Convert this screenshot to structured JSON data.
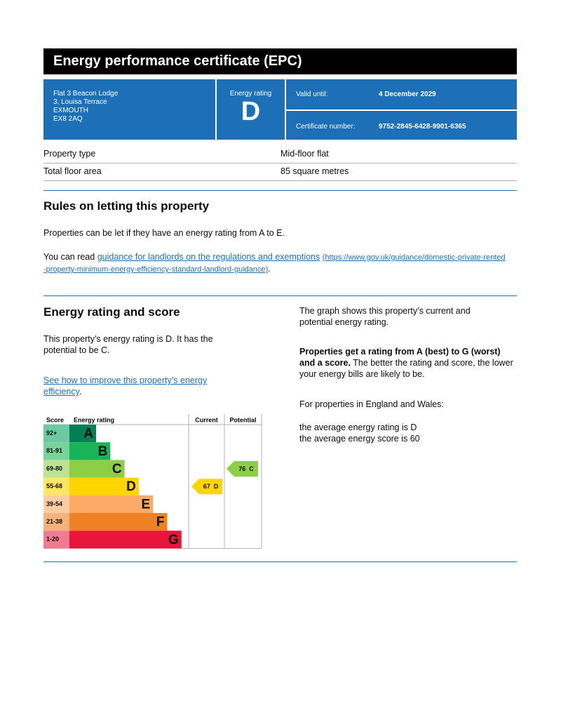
{
  "header": {
    "title": "Energy performance certificate (EPC)"
  },
  "summary": {
    "address": [
      "Flat 3 Beacon Lodge",
      "3, Louisa Terrace",
      "EXMOUTH",
      "EX8 2AQ"
    ],
    "rating_label": "Energy rating",
    "rating": "D",
    "valid_until_label": "Valid until:",
    "valid_until": "4 December 2029",
    "certificate_number_label": "Certificate number:",
    "certificate_number": "9752-2845-6428-9901-6365"
  },
  "property": {
    "rows": [
      [
        "Property type",
        "Mid-floor flat"
      ],
      [
        "Total floor area",
        "85 square metres"
      ]
    ]
  },
  "rules": {
    "heading": "Rules on letting this property",
    "paragraph": "Properties can be let if they have an energy rating from A to E.",
    "read_prefix": "You can read ",
    "link": "guidance for landlords on the regulations and exemptions",
    "link_url": "(https://www.gov.uk/guidance/domestic-private-rented-property-minimum-energy-efficiency-standard-landlord-guidance)",
    "read_suffix": "."
  },
  "energy": {
    "heading": "Energy rating and score",
    "paragraph": "This property’s energy rating is D. It has the potential to be C.",
    "improve_link": "See how to improve this property’s energy efficiency",
    "improve_suffix": ".",
    "right": {
      "graph_text": "The graph shows this property’s current and potential energy rating.",
      "bold_text": "Properties get a rating from A (best) to G (worst) and a score.",
      "rest_text": " The better the rating and score, the lower your energy bills are likely to be.",
      "region_text": "For properties in England and Wales:",
      "average_rating": "the average energy rating is D",
      "average_score": "the average energy score is 60"
    },
    "rating_chart": {
      "headers": {
        "score": "Score",
        "rating": "Energy rating",
        "current": "Current",
        "potential": "Potential"
      },
      "bands": [
        {
          "letter": "A",
          "range": "92+",
          "color": "#008054",
          "range_color": "#6cc9a2"
        },
        {
          "letter": "B",
          "range": "81-91",
          "color": "#19b459",
          "range_color": "#7ad29b"
        },
        {
          "letter": "C",
          "range": "69-80",
          "color": "#8dce46",
          "range_color": "#bde293"
        },
        {
          "letter": "D",
          "range": "55-68",
          "color": "#ffd500",
          "range_color": "#ffe566"
        },
        {
          "letter": "E",
          "range": "39-54",
          "color": "#fcaa65",
          "range_color": "#fdcca2"
        },
        {
          "letter": "F",
          "range": "21-38",
          "color": "#ef8023",
          "range_color": "#f5b37b"
        },
        {
          "letter": "G",
          "range": "1-20",
          "color": "#e9153b",
          "range_color": "#f27b91"
        }
      ],
      "current": {
        "score": 67,
        "band": "D",
        "color": "#ffd500"
      },
      "potential": {
        "score": 76,
        "band": "C",
        "color": "#8dce46"
      }
    }
  }
}
